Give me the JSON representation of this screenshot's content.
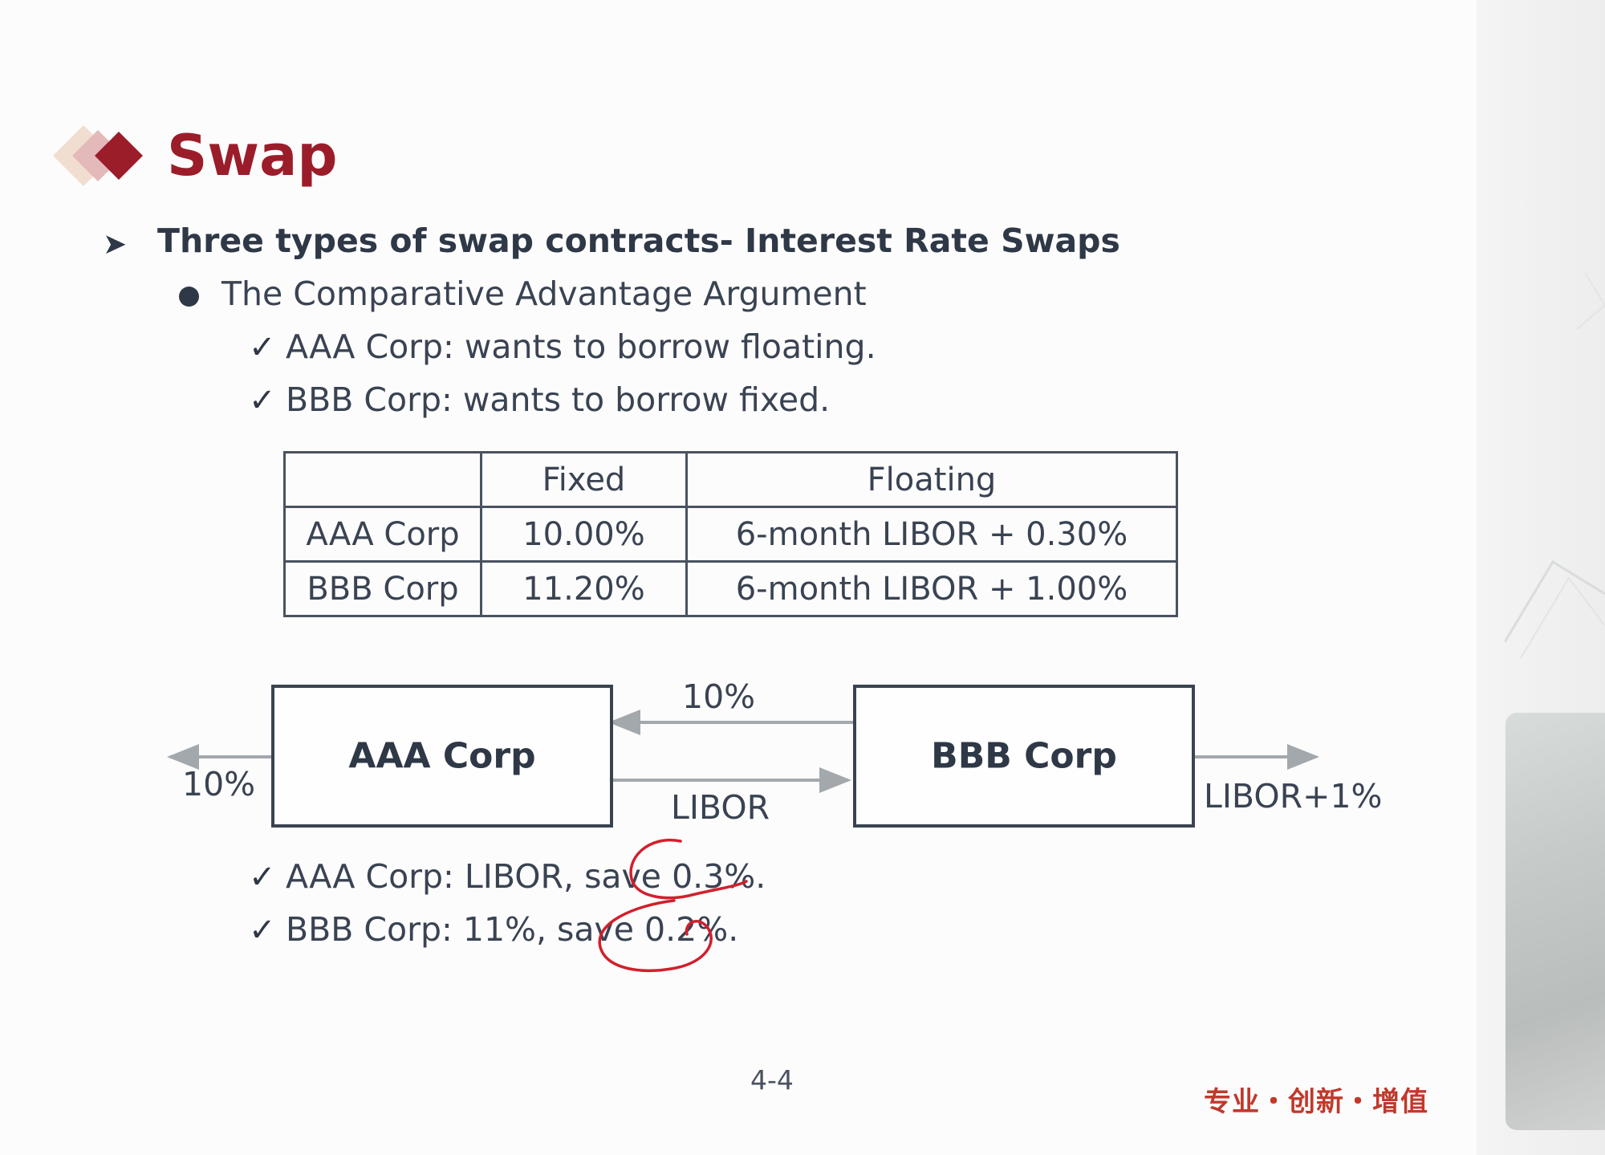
{
  "slide": {
    "title": "Swap",
    "heading": "Three types of swap contracts- Interest Rate Swaps",
    "bullet": "The Comparative Advantage Argument",
    "checks_top": [
      "AAA Corp: wants to borrow floating.",
      "BBB Corp: wants to borrow fixed."
    ],
    "table": {
      "headers": [
        "",
        "Fixed",
        "Floating"
      ],
      "rows": [
        [
          "AAA Corp",
          "10.00%",
          "6-month LIBOR + 0.30%"
        ],
        [
          "BBB Corp",
          "11.20%",
          "6-month LIBOR + 1.00%"
        ]
      ]
    },
    "diagram": {
      "left_box": "AAA Corp",
      "right_box": "BBB Corp",
      "top_flow": "10%",
      "bottom_flow": "LIBOR",
      "left_external": "10%",
      "right_external": "LIBOR+1%"
    },
    "checks_bottom": [
      "AAA Corp: LIBOR, save 0.3%.",
      "BBB Corp: 11%, save 0.2%."
    ],
    "page_number": "4-4",
    "footer_slogan": "专业・创新・增值"
  },
  "colors": {
    "title": "#9b1d2a",
    "text": "#3a4352",
    "slogan": "#c0392b",
    "annotation_ink": "#d21f2c"
  }
}
